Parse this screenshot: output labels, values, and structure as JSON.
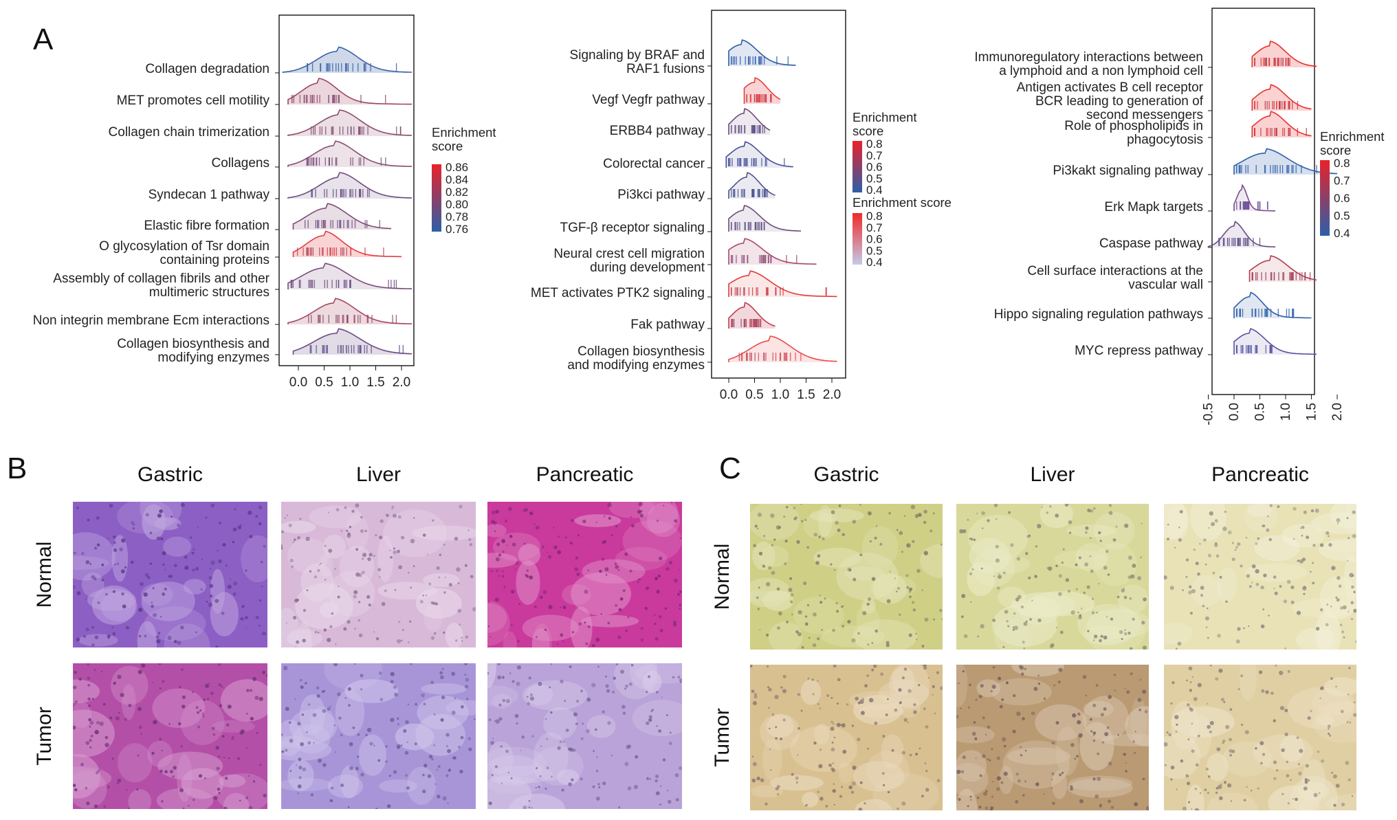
{
  "panel_A": {
    "label": "A",
    "plots": [
      {
        "rows": [
          "Collagen degradation",
          "MET promotes cell motility",
          "Collagen chain trimerization",
          "Collagens",
          "Syndecan 1 pathway",
          "Elastic fibre formation",
          "O glycosylation of Tsr domain|containing proteins",
          "Assembly of collagen fibrils and other|multimeric structures",
          "Non integrin membrane Ecm interactions",
          "Collagen biosynthesis and|modifying enzymes"
        ],
        "legends": [
          {
            "title": "Enrichment|score",
            "ticks": [
              "0.86",
              "0.84",
              "0.82",
              "0.80",
              "0.78",
              "0.76"
            ],
            "colors": [
              "#e8222a",
              "#2d5fa8"
            ]
          }
        ]
      },
      {
        "rows": [
          "Signaling by BRAF and|RAF1 fusions",
          "Vegf Vegfr pathway",
          "ERBB4 pathway",
          "Colorectal cancer",
          "Pi3kci pathway",
          "TGF-β receptor signaling",
          "Neural crest cell migration|during development",
          "MET activates PTK2 signaling",
          "Fak pathway",
          "Collagen biosynthesis|and modifying enzymes"
        ],
        "legends": [
          {
            "title": "Enrichment|score",
            "ticks": [
              "0.8",
              "0.7",
              "0.6",
              "0.5",
              "0.4"
            ],
            "colors": [
              "#e8222a",
              "#2d5fa8"
            ]
          },
          {
            "title": "Enrichment score",
            "ticks": [
              "0.8",
              "0.7",
              "0.6",
              "0.5",
              "0.4"
            ],
            "colors": [
              "#f02a2a",
              "#c3cbe8"
            ]
          }
        ]
      },
      {
        "rows": [
          "Immunoregulatory interactions between|a lymphoid and a non lymphoid cell",
          "Antigen activates B cell receptor|BCR leading to generation of|second messengers",
          "Role of phospholipids in|phagocytosis",
          "Pi3kakt signaling pathway",
          "Erk Mapk targets",
          "Caspase pathway",
          "Cell surface interactions at the|vascular wall",
          "Hippo signaling regulation pathways",
          "MYC repress pathway"
        ],
        "legends": [
          {
            "title": "Enrichment|score",
            "ticks": [
              "0.8",
              "0.7",
              "0.6",
              "0.5",
              "0.4"
            ],
            "colors": [
              "#e8222a",
              "#2d5fa8"
            ]
          }
        ]
      }
    ],
    "x_ticks_1": [
      "0.0",
      "0.5",
      "1.0",
      "1.5",
      "2.0"
    ],
    "x_ticks_2": [
      "0.0",
      "0.5",
      "1.0",
      "1.5",
      "2.0"
    ],
    "x_ticks_3": [
      "-0.5",
      "0.0",
      "0.5",
      "1.0",
      "1.5",
      "2.0"
    ]
  },
  "panel_B": {
    "label": "B",
    "columns": [
      "Gastric",
      "Liver",
      "Pancreatic"
    ],
    "rows": [
      "Normal",
      "Tumor"
    ],
    "image_tones": [
      [
        "#8c5fc4",
        "#d8b9d8",
        "#c93a9c"
      ],
      [
        "#b44fa8",
        "#a895d8",
        "#b9a3d8"
      ]
    ]
  },
  "panel_C": {
    "label": "C",
    "columns": [
      "Gastric",
      "Liver",
      "Pancreatic"
    ],
    "rows": [
      "Normal",
      "Tumor"
    ],
    "image_tones": [
      [
        "#cfcf86",
        "#d8d89a",
        "#e8e2b6"
      ],
      [
        "#d9c090",
        "#b99a72",
        "#e0cfa2"
      ]
    ]
  },
  "colors": {
    "red": "#e8222a",
    "blue": "#2d5fa8",
    "purple": "#7a4a8c"
  }
}
